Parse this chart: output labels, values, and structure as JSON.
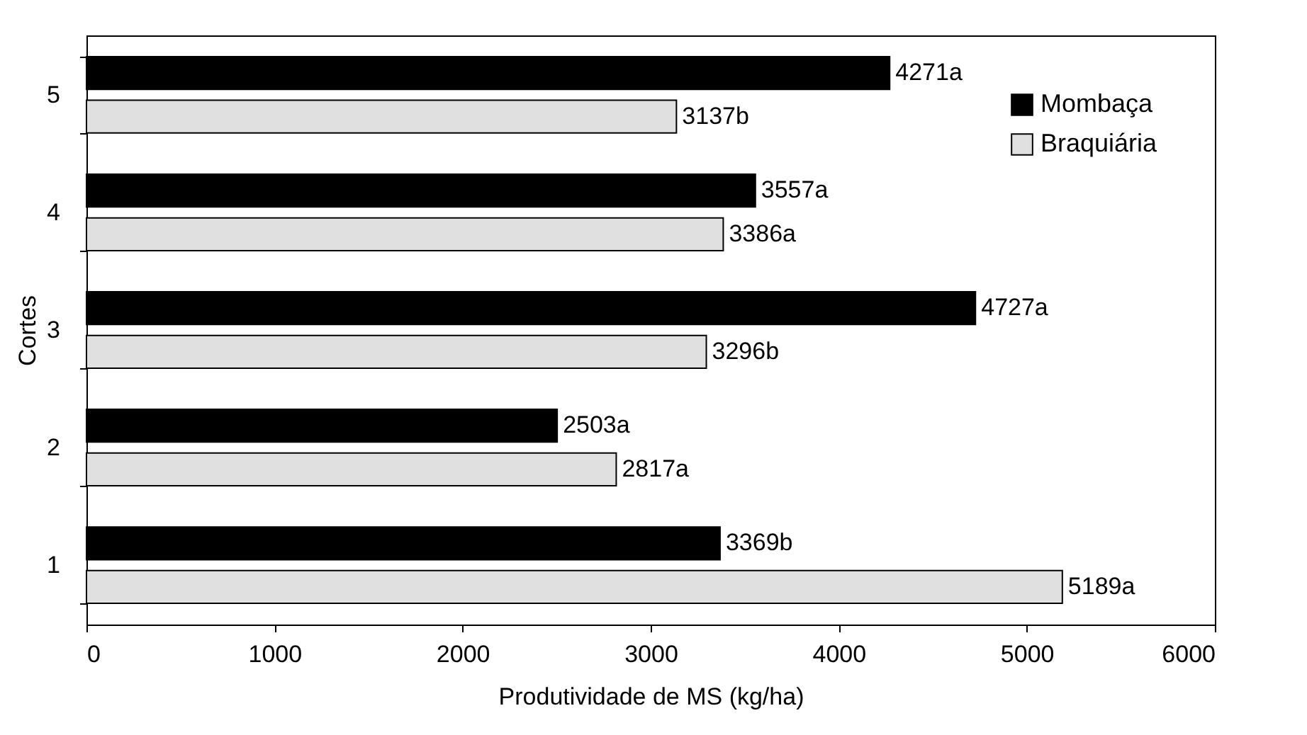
{
  "chart_data": {
    "type": "bar",
    "orientation": "horizontal",
    "categories": [
      "5",
      "4",
      "3",
      "2",
      "1"
    ],
    "series": [
      {
        "name": "Mombaça",
        "color": "#000000",
        "values": [
          4271,
          3557,
          4727,
          2503,
          3369
        ],
        "value_labels": [
          "4271a",
          "3557a",
          "4727a",
          "2503a",
          "3369b"
        ]
      },
      {
        "name": "Braquiária",
        "color": "#e0e0e0",
        "values": [
          3137,
          3386,
          3296,
          2817,
          5189
        ],
        "value_labels": [
          "3137b",
          "3386a",
          "3296b",
          "2817a",
          "5189a"
        ]
      }
    ],
    "xlabel": "Produtividade de MS (kg/ha)",
    "ylabel": "Cortes",
    "xlim": [
      0,
      6000
    ],
    "xticks": [
      0,
      1000,
      2000,
      3000,
      4000,
      5000,
      6000
    ],
    "grid": false,
    "legend": "top right"
  }
}
